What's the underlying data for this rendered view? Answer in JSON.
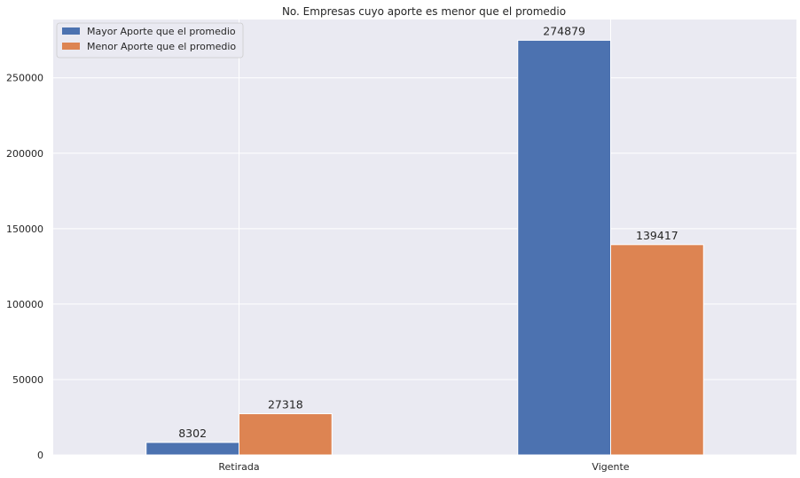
{
  "chart_data": {
    "type": "bar",
    "title": "No. Empresas cuyo aporte es menor que el promedio",
    "xlabel": "",
    "ylabel": "",
    "categories": [
      "Retirada",
      "Vigente"
    ],
    "series": [
      {
        "name": "Mayor Aporte que el promedio",
        "values": [
          8302,
          274879
        ],
        "color": "#4c72b0"
      },
      {
        "name": "Menor Aporte que el promedio",
        "values": [
          27318,
          139417
        ],
        "color": "#dd8452"
      }
    ],
    "ylim": [
      0,
      288623
    ],
    "yticks": [
      0,
      50000,
      100000,
      150000,
      200000,
      250000
    ],
    "ytick_labels": [
      "0",
      "50000",
      "100000",
      "150000",
      "200000",
      "250000"
    ],
    "grid": true,
    "legend_position": "top-left",
    "colors": {
      "background": "#eaeaf2",
      "grid": "#ffffff"
    }
  }
}
